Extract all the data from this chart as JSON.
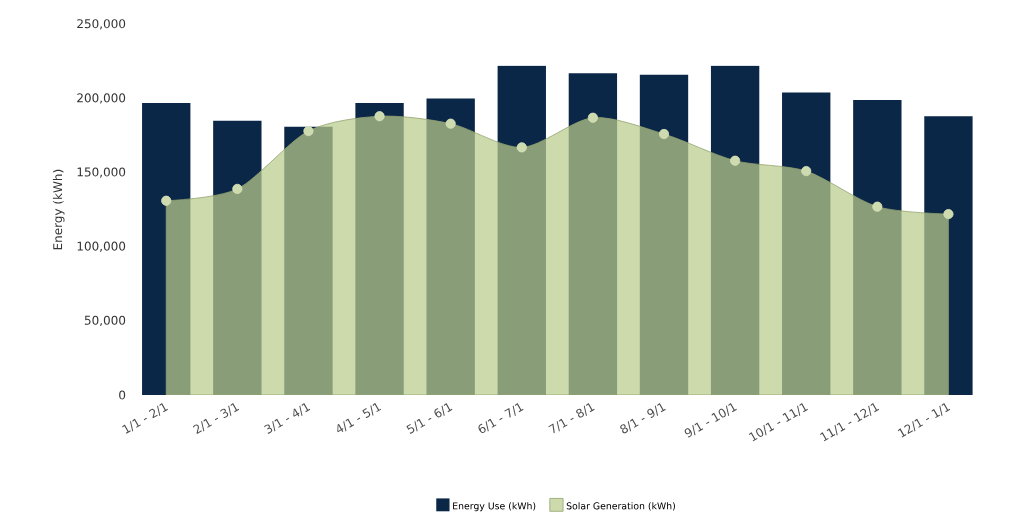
{
  "chart_data": {
    "type": "bar",
    "ylabel": "Energy (kWh)",
    "categories": [
      "1/1 - 2/1",
      "2/1 - 3/1",
      "3/1 - 4/1",
      "4/1 - 5/1",
      "5/1 - 6/1",
      "6/1 - 7/1",
      "7/1 - 8/1",
      "8/1 - 9/1",
      "9/1 - 10/1",
      "10/1 - 11/1",
      "11/1 - 12/1",
      "12/1 - 1/1"
    ],
    "series": [
      {
        "name": "Energy Use (kWh)",
        "color": "#0b2747",
        "values": [
          197000,
          185000,
          181000,
          197000,
          200000,
          222000,
          217000,
          216000,
          222000,
          204000,
          199000,
          188000
        ]
      },
      {
        "name": "Solar Generation (kWh)",
        "type": "area",
        "color": "#b9cc8c",
        "marker": "circle",
        "values": [
          131000,
          139000,
          178000,
          188000,
          183000,
          167000,
          187000,
          176000,
          158000,
          151000,
          127000,
          122000
        ]
      }
    ],
    "ylim": [
      0,
      250000
    ],
    "yticks": [
      {
        "value": 0,
        "label": "0"
      },
      {
        "value": 50000,
        "label": "50,000"
      },
      {
        "value": 100000,
        "label": "100,000"
      },
      {
        "value": 150000,
        "label": "150,000"
      },
      {
        "value": 200000,
        "label": "200,000"
      },
      {
        "value": 250000,
        "label": "250,000"
      }
    ],
    "legend": "bottom",
    "grid": false
  }
}
